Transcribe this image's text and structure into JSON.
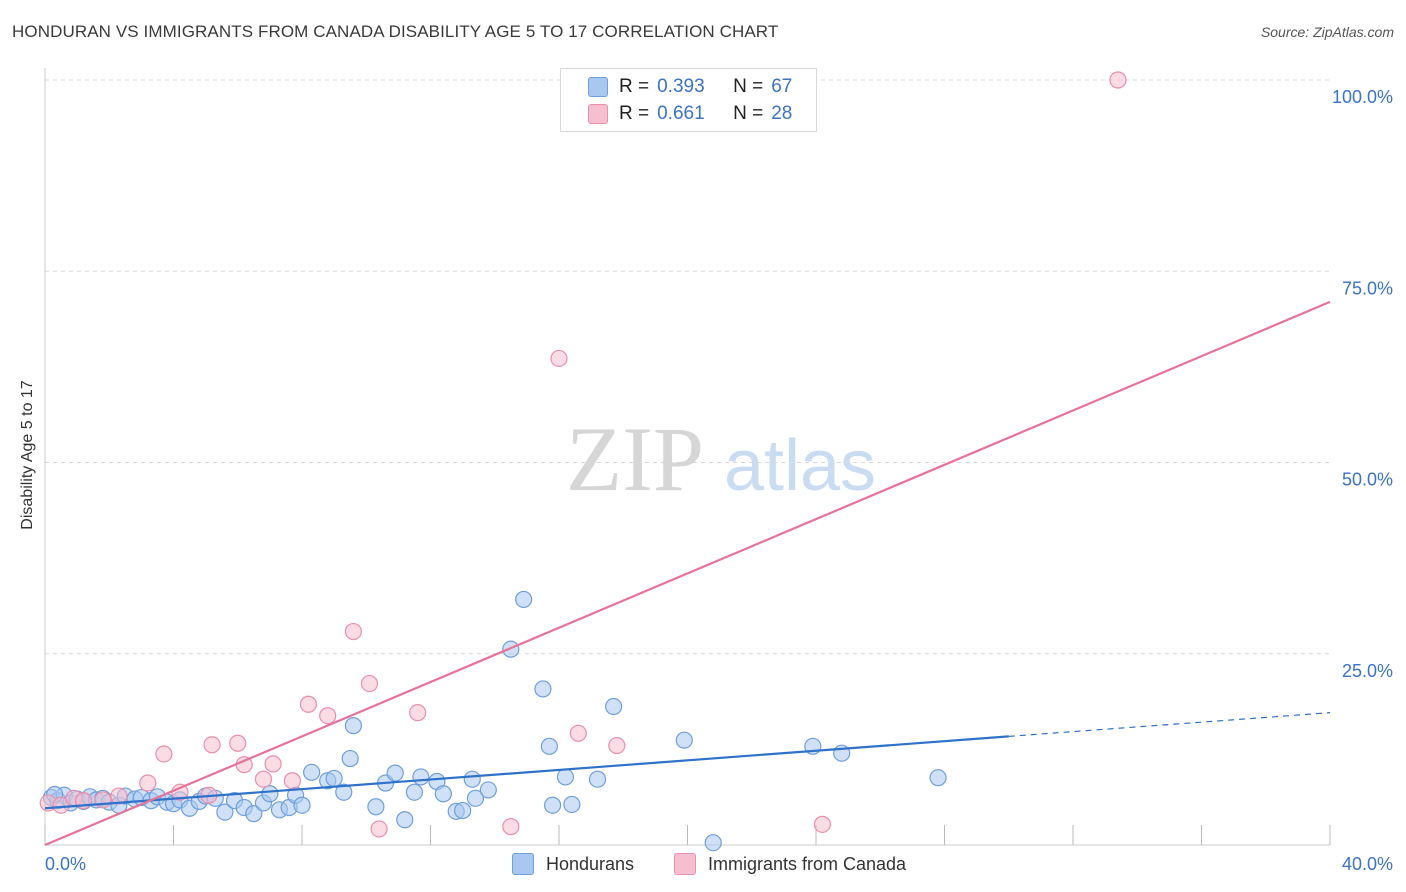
{
  "header": {
    "title": "HONDURAN VS IMMIGRANTS FROM CANADA DISABILITY AGE 5 TO 17 CORRELATION CHART",
    "source": "Source: ZipAtlas.com"
  },
  "watermark": {
    "zip": "ZIP",
    "atlas": "atlas"
  },
  "legend_top": {
    "rows": [
      {
        "r_label": "R =",
        "r_value": "0.393",
        "n_label": "N =",
        "n_value": "67"
      },
      {
        "r_label": "R =",
        "r_value": "0.661",
        "n_label": "N =",
        "n_value": "28"
      }
    ]
  },
  "legend_bottom": {
    "items": [
      "Hondurans",
      "Immigrants from Canada"
    ]
  },
  "colors": {
    "blue_fill": "#a9c8f0",
    "blue_stroke": "#6f9fdc",
    "blue_line": "#2f72c9",
    "pink_fill": "#f6bfd0",
    "pink_stroke": "#ea8fac",
    "pink_line": "#e8729a",
    "tick_text": "#3a73c8",
    "grid": "#d8d8d8"
  },
  "chart_data": {
    "type": "scatter",
    "title": "HONDURAN VS IMMIGRANTS FROM CANADA DISABILITY AGE 5 TO 17 CORRELATION CHART",
    "xlabel": "",
    "ylabel": "Disability Age 5 to 17",
    "xlim": [
      0,
      40
    ],
    "ylim": [
      0,
      100
    ],
    "x_tick_labels": [
      "0.0%",
      "40.0%"
    ],
    "y_ticks": [
      25,
      50,
      75,
      100
    ],
    "y_tick_labels": [
      "25.0%",
      "50.0%",
      "75.0%",
      "100.0%"
    ],
    "grid": true,
    "legend_placement": "top-center",
    "series": [
      {
        "name": "Hondurans",
        "r": 0.393,
        "n": 67,
        "trend": {
          "x_start": 0,
          "y_start": 4.8,
          "x_end": 30,
          "y_end": 14.2,
          "dashed_to_x": 40,
          "dashed_to_y": 17.3
        },
        "points": [
          [
            0.2,
            6.2
          ],
          [
            0.4,
            5.8
          ],
          [
            0.6,
            6.5
          ],
          [
            0.8,
            5.5
          ],
          [
            1.0,
            6.0
          ],
          [
            1.2,
            5.7
          ],
          [
            1.4,
            6.3
          ],
          [
            1.6,
            5.9
          ],
          [
            1.8,
            6.1
          ],
          [
            2.0,
            5.6
          ],
          [
            2.3,
            5.2
          ],
          [
            2.5,
            6.4
          ],
          [
            2.8,
            6.0
          ],
          [
            3.0,
            6.2
          ],
          [
            3.3,
            5.8
          ],
          [
            3.5,
            6.3
          ],
          [
            3.8,
            5.6
          ],
          [
            4.0,
            5.4
          ],
          [
            4.2,
            5.9
          ],
          [
            4.5,
            4.8
          ],
          [
            4.8,
            5.7
          ],
          [
            5.0,
            6.4
          ],
          [
            5.3,
            6.1
          ],
          [
            5.6,
            4.3
          ],
          [
            5.9,
            5.8
          ],
          [
            6.2,
            4.9
          ],
          [
            6.5,
            4.1
          ],
          [
            6.8,
            5.5
          ],
          [
            7.0,
            6.7
          ],
          [
            7.3,
            4.6
          ],
          [
            7.6,
            4.9
          ],
          [
            7.8,
            6.5
          ],
          [
            8.0,
            5.2
          ],
          [
            8.3,
            9.5
          ],
          [
            8.8,
            8.4
          ],
          [
            9.0,
            8.7
          ],
          [
            9.3,
            6.9
          ],
          [
            9.6,
            15.6
          ],
          [
            9.5,
            11.3
          ],
          [
            10.3,
            5.0
          ],
          [
            10.6,
            8.1
          ],
          [
            10.9,
            9.4
          ],
          [
            11.2,
            3.3
          ],
          [
            11.5,
            6.9
          ],
          [
            11.7,
            8.9
          ],
          [
            12.2,
            8.3
          ],
          [
            12.4,
            6.7
          ],
          [
            12.8,
            4.4
          ],
          [
            13.0,
            4.5
          ],
          [
            13.3,
            8.6
          ],
          [
            13.4,
            6.1
          ],
          [
            13.8,
            7.2
          ],
          [
            14.5,
            25.6
          ],
          [
            14.9,
            32.1
          ],
          [
            15.5,
            20.4
          ],
          [
            15.7,
            12.9
          ],
          [
            15.8,
            5.2
          ],
          [
            16.2,
            8.9
          ],
          [
            16.4,
            5.3
          ],
          [
            17.2,
            8.6
          ],
          [
            17.7,
            18.1
          ],
          [
            19.9,
            13.7
          ],
          [
            20.8,
            0.3
          ],
          [
            23.9,
            12.9
          ],
          [
            24.8,
            12.0
          ],
          [
            27.8,
            8.8
          ],
          [
            0.3,
            6.6
          ]
        ]
      },
      {
        "name": "Immigrants from Canada",
        "r": 0.661,
        "n": 28,
        "trend": {
          "x_start": 0,
          "y_start": 0,
          "x_end": 40,
          "y_end": 71
        },
        "points": [
          [
            0.1,
            5.5
          ],
          [
            0.5,
            5.2
          ],
          [
            0.9,
            6.1
          ],
          [
            1.2,
            5.8
          ],
          [
            1.8,
            5.9
          ],
          [
            2.3,
            6.4
          ],
          [
            3.2,
            8.1
          ],
          [
            3.7,
            11.9
          ],
          [
            4.2,
            6.9
          ],
          [
            5.1,
            6.5
          ],
          [
            5.2,
            13.1
          ],
          [
            6.0,
            13.3
          ],
          [
            6.2,
            10.5
          ],
          [
            6.8,
            8.6
          ],
          [
            7.1,
            10.6
          ],
          [
            7.7,
            8.4
          ],
          [
            8.2,
            18.4
          ],
          [
            8.8,
            16.9
          ],
          [
            9.6,
            27.9
          ],
          [
            10.1,
            21.1
          ],
          [
            10.4,
            2.1
          ],
          [
            11.6,
            17.3
          ],
          [
            14.5,
            2.4
          ],
          [
            16.0,
            63.6
          ],
          [
            16.6,
            14.6
          ],
          [
            17.8,
            13.0
          ],
          [
            24.2,
            2.7
          ],
          [
            33.4,
            100.0
          ]
        ]
      }
    ]
  }
}
